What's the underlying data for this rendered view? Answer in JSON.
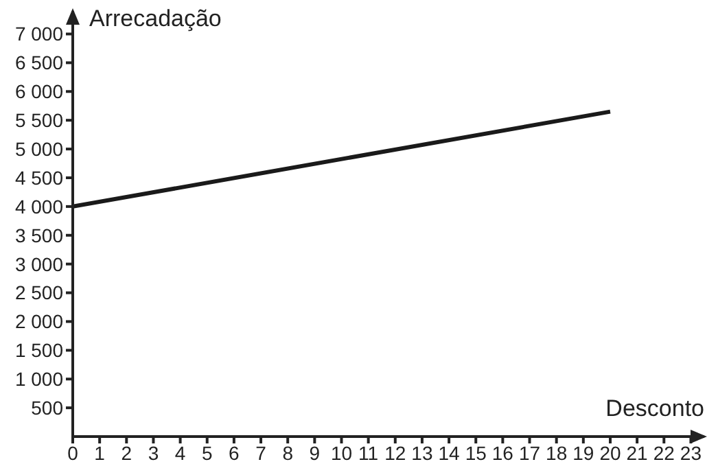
{
  "chart_data": {
    "type": "line",
    "xlabel": "Desconto",
    "ylabel": "Arrecadação",
    "x": [
      0,
      20
    ],
    "series": [
      {
        "color": "#1a1a1a",
        "values": [
          4000,
          5650
        ]
      }
    ],
    "xlim": [
      0,
      23.5
    ],
    "ylim": [
      0,
      7400
    ],
    "xticks": [
      0,
      1,
      2,
      3,
      4,
      5,
      6,
      7,
      8,
      9,
      10,
      11,
      12,
      13,
      14,
      15,
      16,
      17,
      18,
      19,
      20,
      21,
      22,
      23
    ],
    "yticks": [
      {
        "value": 500,
        "label": "500"
      },
      {
        "value": 1000,
        "label": "1 000"
      },
      {
        "value": 1500,
        "label": "1 500"
      },
      {
        "value": 2000,
        "label": "2 000"
      },
      {
        "value": 2500,
        "label": "2 500"
      },
      {
        "value": 3000,
        "label": "3 000"
      },
      {
        "value": 3500,
        "label": "3 500"
      },
      {
        "value": 4000,
        "label": "4 000"
      },
      {
        "value": 4500,
        "label": "4 500"
      },
      {
        "value": 5000,
        "label": "5 000"
      },
      {
        "value": 5500,
        "label": "5 500"
      },
      {
        "value": 6000,
        "label": "6 000"
      },
      {
        "value": 6500,
        "label": "6 500"
      },
      {
        "value": 7000,
        "label": "7 000"
      }
    ]
  }
}
